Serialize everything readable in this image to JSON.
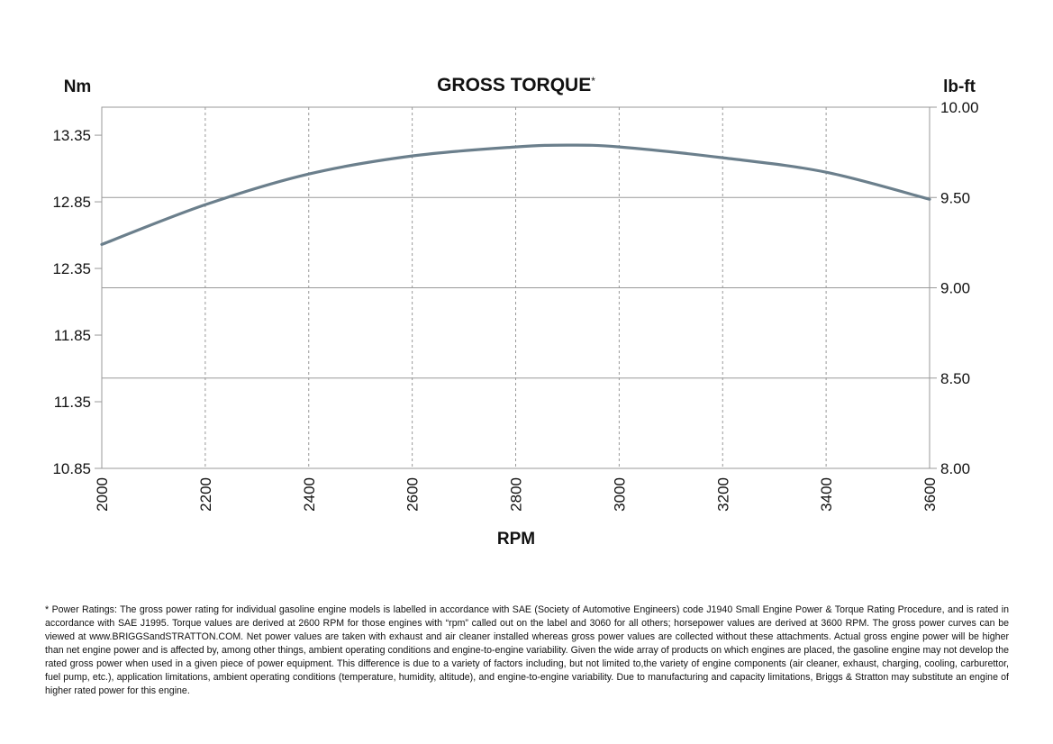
{
  "chart_data": {
    "type": "line",
    "title": "GROSS TORQUE",
    "title_mark": "*",
    "xlabel": "RPM",
    "ylabel_left": "Nm",
    "ylabel_right": "lb-ft",
    "xlim": [
      2000,
      3600
    ],
    "ylim_left": [
      10.85,
      13.56
    ],
    "ylim_right": [
      8.0,
      10.0
    ],
    "x_ticks": [
      "2000",
      "2200",
      "2400",
      "2600",
      "2800",
      "3000",
      "3200",
      "3400",
      "3600"
    ],
    "x_tick_values": [
      2000,
      2200,
      2400,
      2600,
      2800,
      3000,
      3200,
      3400,
      3600
    ],
    "y_left_ticks": [
      "10.85",
      "11.35",
      "11.85",
      "12.35",
      "12.85",
      "13.35"
    ],
    "y_left_tick_values": [
      10.85,
      11.35,
      11.85,
      12.35,
      12.85,
      13.35
    ],
    "y_right_ticks": [
      "8.00",
      "8.50",
      "9.00",
      "9.50",
      "10.00"
    ],
    "y_right_tick_values": [
      8.0,
      8.5,
      9.0,
      9.5,
      10.0
    ],
    "grid": {
      "x": "dashed",
      "y_right": "solid"
    },
    "series": [
      {
        "color": "#6b7f8c",
        "axis": "right",
        "x": [
          2000,
          2200,
          2400,
          2600,
          2800,
          2900,
          3000,
          3200,
          3400,
          3600
        ],
        "y": [
          9.24,
          9.46,
          9.63,
          9.73,
          9.78,
          9.79,
          9.78,
          9.72,
          9.64,
          9.49
        ]
      }
    ]
  },
  "footnote": "* Power Ratings: The gross power rating for individual gasoline engine models is labelled in accordance with SAE (Society of Automotive Engineers) code J1940 Small Engine Power & Torque Rating Procedure, and is rated in accordance with SAE J1995. Torque values are derived at 2600 RPM for those engines with “rpm” called out on the label and 3060 for all others; horsepower values are derived at 3600 RPM. The gross power curves can be viewed at www.BRIGGSandSTRATTON.COM. Net power values are taken with exhaust and air cleaner installed whereas gross power values are collected without these attachments. Actual gross engine power will be higher than net engine power and is affected by, among other things, ambient operating conditions and engine-to-engine variability. Given the wide array of products on which engines are placed, the gasoline engine may not develop the rated gross power when used in a given piece of power equipment. This difference is due to a variety of factors including, but not limited to,the variety of engine components (air cleaner, exhaust, charging, cooling, carburettor, fuel pump, etc.), application limitations, ambient operating conditions (temperature, humidity, altitude), and engine-to-engine variability. Due to manufacturing and capacity limitations, Briggs & Stratton may substitute an engine of higher rated power for this engine."
}
